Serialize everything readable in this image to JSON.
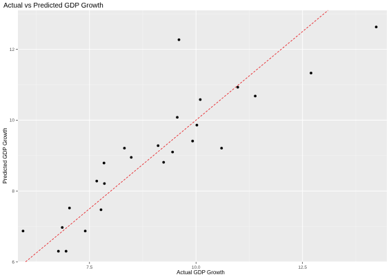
{
  "chart_data": {
    "type": "scatter",
    "title": "Actual vs Predicted GDP Growth",
    "xlabel": "Actual GDP Growth",
    "ylabel": "Predicted GDP Growth",
    "xlim": [
      5.82,
      14.48
    ],
    "ylim": [
      6.0,
      13.1
    ],
    "xticks": [
      {
        "value": 7.5,
        "label": "7.5"
      },
      {
        "value": 10.0,
        "label": "10.0"
      },
      {
        "value": 12.5,
        "label": "12.5"
      }
    ],
    "yticks": [
      {
        "value": 6,
        "label": "6"
      },
      {
        "value": 8,
        "label": "8"
      },
      {
        "value": 10,
        "label": "10"
      },
      {
        "value": 12,
        "label": "12"
      }
    ],
    "grid": true,
    "reference_line": {
      "slope": 1,
      "intercept": 0,
      "style": "dashed",
      "color": "#e8262b"
    },
    "colors": {
      "panel": "#ebebeb",
      "grid_major": "#ffffff",
      "grid_minor": "#f5f5f5",
      "point": "#000000",
      "ticks": "#333333"
    },
    "points": [
      {
        "x": 5.94,
        "y": 6.87
      },
      {
        "x": 6.77,
        "y": 6.3
      },
      {
        "x": 6.86,
        "y": 6.97
      },
      {
        "x": 6.95,
        "y": 6.3
      },
      {
        "x": 7.03,
        "y": 7.52
      },
      {
        "x": 7.4,
        "y": 6.87
      },
      {
        "x": 7.67,
        "y": 8.28
      },
      {
        "x": 7.77,
        "y": 7.47
      },
      {
        "x": 7.84,
        "y": 8.79
      },
      {
        "x": 7.85,
        "y": 8.21
      },
      {
        "x": 8.32,
        "y": 9.21
      },
      {
        "x": 8.48,
        "y": 8.95
      },
      {
        "x": 9.11,
        "y": 9.28
      },
      {
        "x": 9.24,
        "y": 8.81
      },
      {
        "x": 9.45,
        "y": 9.1
      },
      {
        "x": 9.56,
        "y": 10.08
      },
      {
        "x": 9.6,
        "y": 12.27
      },
      {
        "x": 9.92,
        "y": 9.41
      },
      {
        "x": 10.02,
        "y": 9.86
      },
      {
        "x": 10.1,
        "y": 10.58
      },
      {
        "x": 10.6,
        "y": 9.21
      },
      {
        "x": 10.98,
        "y": 10.93
      },
      {
        "x": 11.39,
        "y": 10.68
      },
      {
        "x": 12.7,
        "y": 11.33
      },
      {
        "x": 14.23,
        "y": 12.63
      }
    ]
  }
}
